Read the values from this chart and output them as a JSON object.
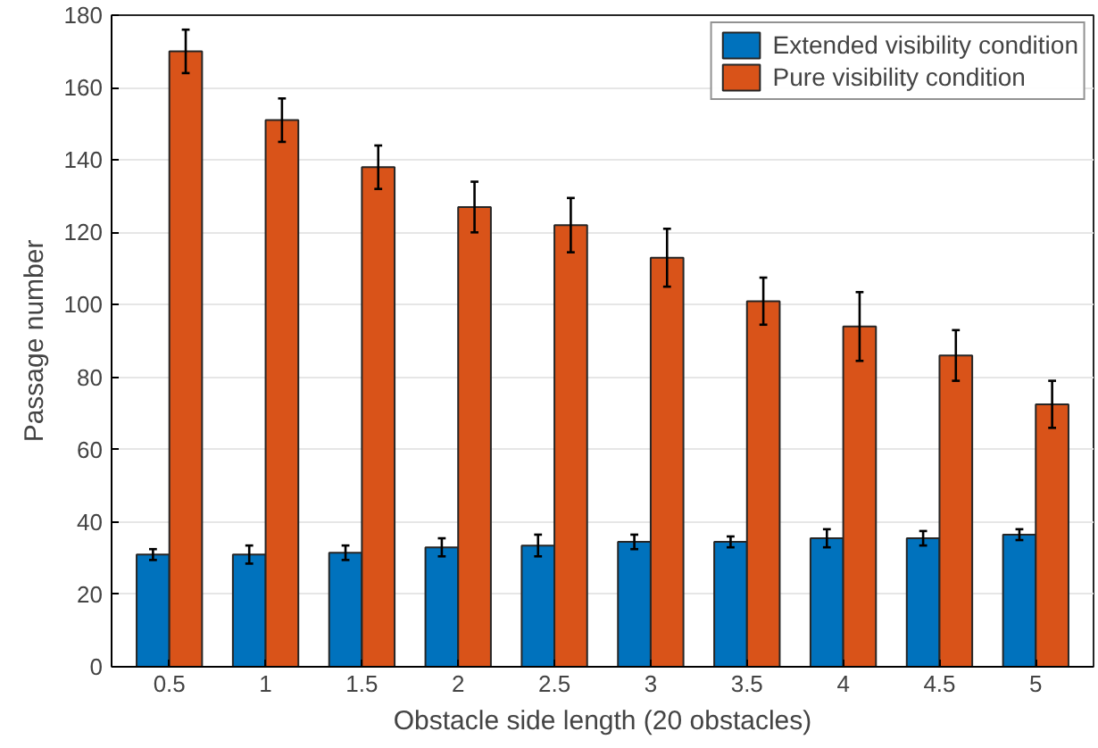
{
  "chart_data": {
    "type": "bar",
    "xlabel": "Obstacle side length (20 obstacles)",
    "ylabel": "Passage number",
    "categories": [
      "0.5",
      "1",
      "1.5",
      "2",
      "2.5",
      "3",
      "3.5",
      "4",
      "4.5",
      "5"
    ],
    "series": [
      {
        "name": "Extended visibility condition",
        "color": "#0072bd",
        "values": [
          31,
          31,
          31.5,
          33,
          33.5,
          34.5,
          34.5,
          35.5,
          35.5,
          36.5
        ],
        "errors": [
          1.5,
          2.5,
          2,
          2.5,
          3,
          2,
          1.5,
          2.5,
          2,
          1.5
        ]
      },
      {
        "name": "Pure visibility condition",
        "color": "#d95319",
        "values": [
          170,
          151,
          138,
          127,
          122,
          113,
          101,
          94,
          86,
          72.5
        ],
        "errors": [
          6,
          6,
          6,
          7,
          7.5,
          8,
          6.5,
          9.5,
          7,
          6.5
        ]
      }
    ],
    "ylim": [
      0,
      180
    ],
    "yticks": [
      0,
      20,
      40,
      60,
      80,
      100,
      120,
      140,
      160,
      180
    ],
    "grid": "y",
    "legend": "top right"
  }
}
